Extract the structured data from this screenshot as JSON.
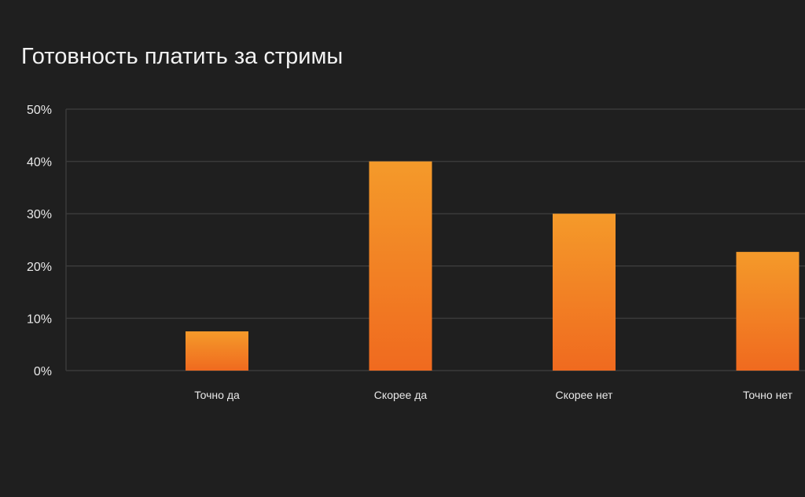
{
  "chart_data": {
    "type": "bar",
    "title": "Готовность платить за стримы",
    "categories": [
      "Точно да",
      "Скорее да",
      "Скорее нет",
      "Точно нет"
    ],
    "values": [
      7.5,
      40,
      30,
      22.7
    ],
    "ylim": [
      0,
      50
    ],
    "yticks": [
      0,
      10,
      20,
      30,
      40,
      50
    ],
    "ytick_labels": [
      "0%",
      "10%",
      "20%",
      "30%",
      "40%",
      "50%"
    ],
    "xlabel": "",
    "ylabel": "",
    "grid": true,
    "colors": {
      "bar_top": "#f49a2a",
      "bar_bottom": "#f06a1f",
      "background": "#1f1f1f",
      "grid": "#3a3a3a",
      "text": "#e8e8e8"
    }
  }
}
